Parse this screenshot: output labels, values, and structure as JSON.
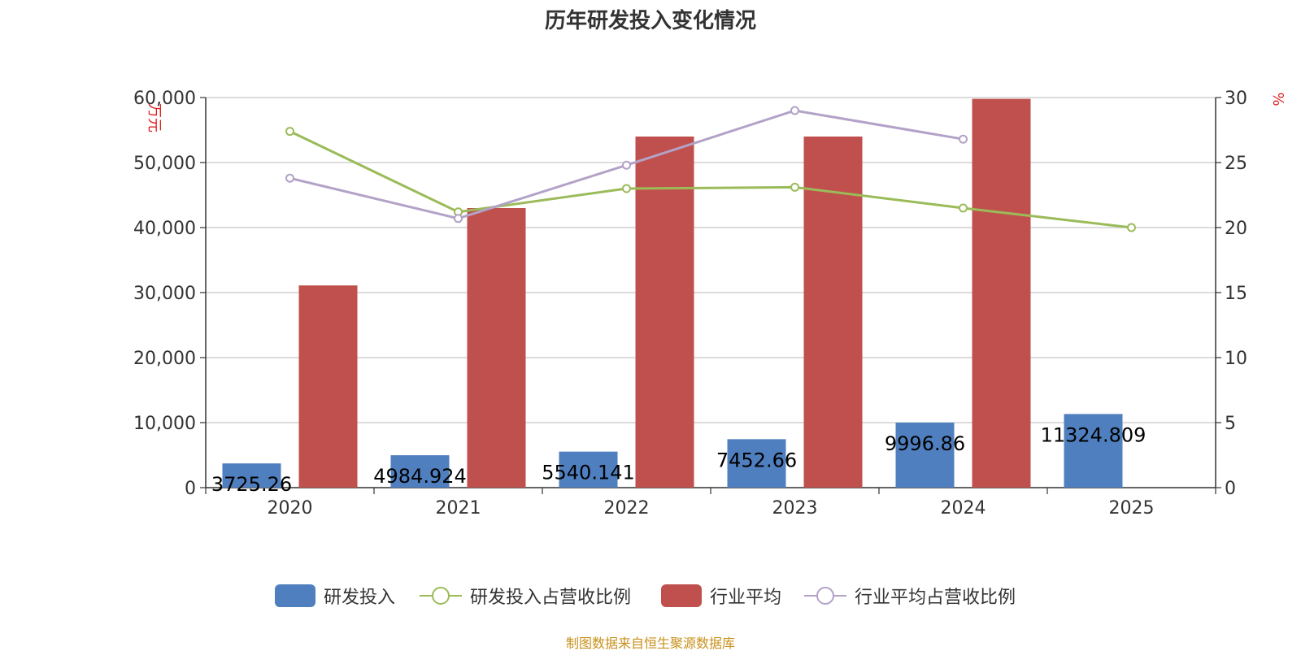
{
  "title": "历年研发投入变化情况",
  "source": "制图数据来自恒生聚源数据库",
  "chart_data": {
    "type": "bar",
    "categories": [
      "2020",
      "2021",
      "2022",
      "2023",
      "2024",
      "2025"
    ],
    "y_left": {
      "label": "万元",
      "ylim": [
        0,
        60000
      ],
      "ticks": [
        "0",
        "10,000",
        "20,000",
        "30,000",
        "40,000",
        "50,000",
        "60,000"
      ],
      "tick_values": [
        0,
        10000,
        20000,
        30000,
        40000,
        50000,
        60000
      ]
    },
    "y_right": {
      "label": "%",
      "ylim": [
        0,
        30
      ],
      "ticks": [
        "0",
        "5",
        "10",
        "15",
        "20",
        "25",
        "30"
      ],
      "tick_values": [
        0,
        5,
        10,
        15,
        20,
        25,
        30
      ]
    },
    "grid": true,
    "legend_position": "bottom",
    "series": [
      {
        "name": "研发投入",
        "type": "bar",
        "axis": "left",
        "color": "#4f7fbf",
        "values": [
          3725.26,
          4984.924,
          5540.141,
          7452.66,
          9996.86,
          11324.809
        ],
        "labels": [
          "3725.26",
          "4984.924",
          "5540.141",
          "7452.66",
          "9996.86",
          "11324.809"
        ]
      },
      {
        "name": "研发投入占营收比例",
        "type": "line",
        "axis": "right",
        "color": "#9bbb59",
        "values": [
          27.4,
          21.2,
          23.0,
          23.1,
          21.5,
          20.0
        ]
      },
      {
        "name": "行业平均",
        "type": "bar",
        "axis": "left",
        "color": "#c0504d",
        "values": [
          31100,
          43000,
          54000,
          54000,
          59800,
          null
        ]
      },
      {
        "name": "行业平均占营收比例",
        "type": "line",
        "axis": "right",
        "color": "#b3a2c7",
        "values": [
          23.8,
          20.7,
          24.8,
          29.0,
          26.8,
          null
        ]
      }
    ]
  }
}
